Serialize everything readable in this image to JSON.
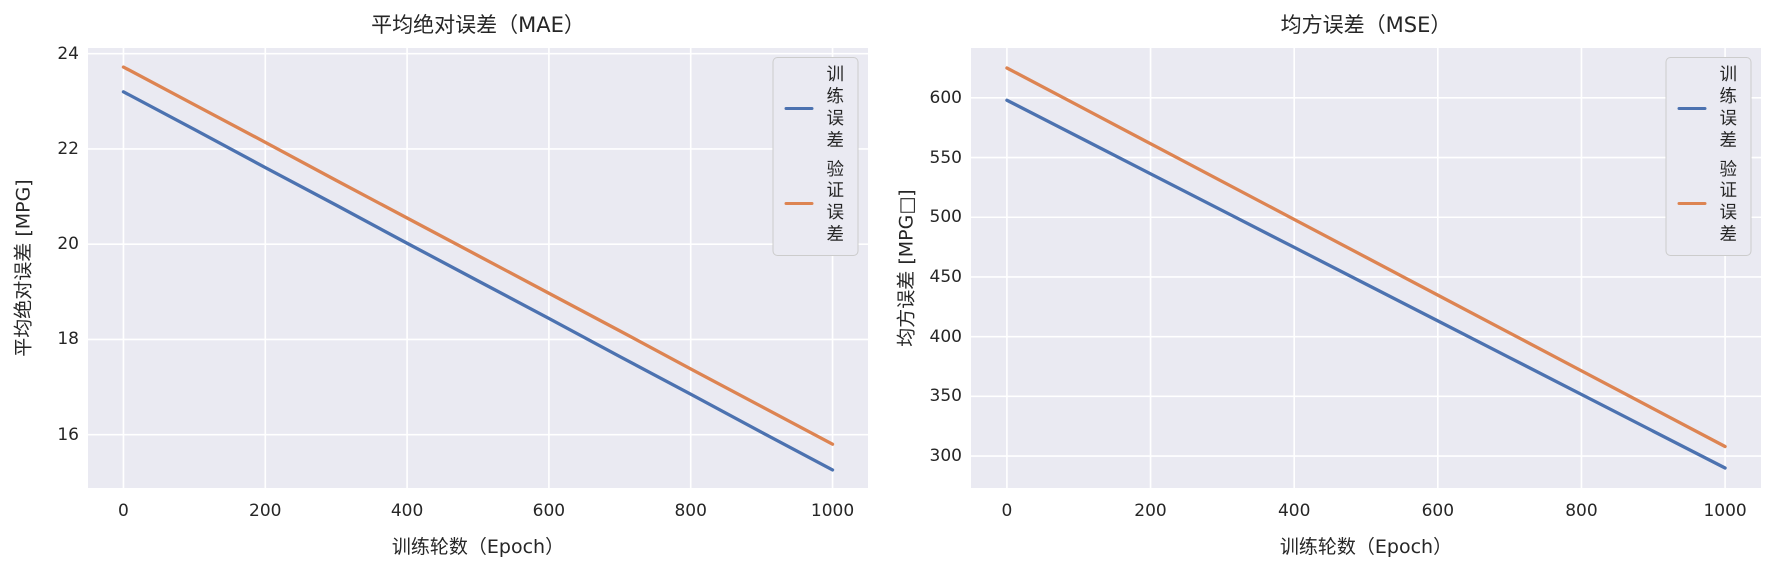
{
  "figure": {
    "background": "#ffffff",
    "axes_background": "#eaeaf2",
    "grid_color": "#ffffff",
    "text_color": "#262626"
  },
  "chart_data": [
    {
      "type": "line",
      "title": "平均绝对误差（MAE）",
      "xlabel": "训练轮数（Epoch）",
      "ylabel": "平均绝对误差 [MPG]",
      "grid": true,
      "legend_position": "top-right",
      "x": [
        0,
        100,
        200,
        300,
        400,
        500,
        600,
        700,
        800,
        900,
        1000
      ],
      "series": [
        {
          "name": "训练误差",
          "color": "#4c72b0",
          "values": [
            23.2,
            22.41,
            21.61,
            20.82,
            20.02,
            19.23,
            18.44,
            17.64,
            16.85,
            16.05,
            15.26
          ]
        },
        {
          "name": "验证误差",
          "color": "#dd8452",
          "values": [
            23.72,
            22.93,
            22.14,
            21.34,
            20.55,
            19.76,
            18.97,
            18.18,
            17.38,
            16.59,
            15.8
          ]
        }
      ],
      "xlim": [
        -50,
        1050
      ],
      "ylim": [
        14.88,
        24.12
      ],
      "xticks": [
        0,
        200,
        400,
        600,
        800,
        1000
      ],
      "yticks": [
        16,
        18,
        20,
        22,
        24
      ]
    },
    {
      "type": "line",
      "title": "均方误差（MSE）",
      "xlabel": "训练轮数（Epoch）",
      "ylabel": "均方误差 [MPG□]",
      "grid": true,
      "legend_position": "top-right",
      "x": [
        0,
        100,
        200,
        300,
        400,
        500,
        600,
        700,
        800,
        900,
        1000
      ],
      "series": [
        {
          "name": "训练误差",
          "color": "#4c72b0",
          "values": [
            598,
            567.2,
            536.4,
            505.6,
            474.8,
            444,
            413.2,
            382.4,
            351.6,
            320.8,
            290
          ]
        },
        {
          "name": "验证误差",
          "color": "#dd8452",
          "values": [
            625,
            593.3,
            561.6,
            529.9,
            498.2,
            466.5,
            434.8,
            403.1,
            371.4,
            339.7,
            308
          ]
        }
      ],
      "xlim": [
        -50,
        1050
      ],
      "ylim": [
        273.25,
        641.75
      ],
      "xticks": [
        0,
        200,
        400,
        600,
        800,
        1000
      ],
      "yticks": [
        300,
        350,
        400,
        450,
        500,
        550,
        600
      ]
    }
  ]
}
